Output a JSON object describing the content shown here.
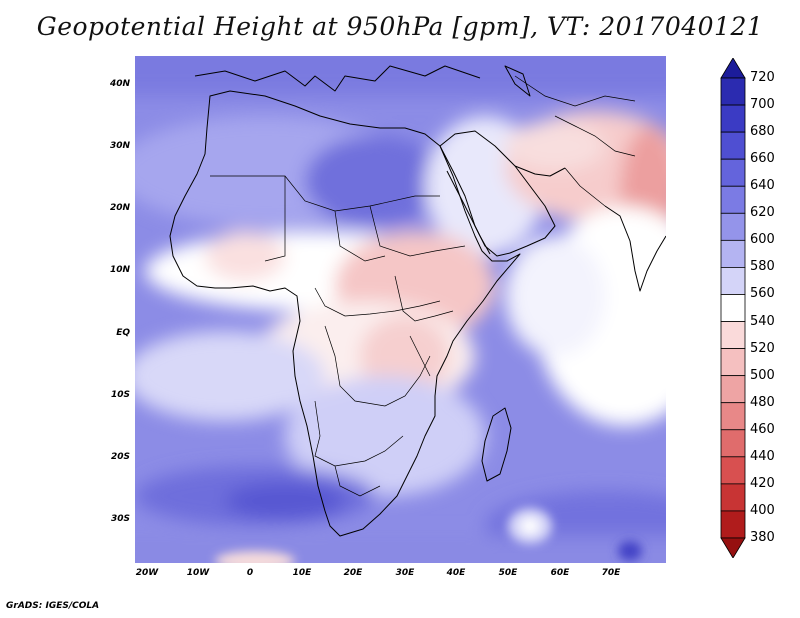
{
  "title": "Geopotential Height at 950hPa [gpm], VT: 2017040121",
  "credit": "GrADS: IGES/COLA",
  "map": {
    "variable": "Geopotential Height",
    "level": "950hPa",
    "units": "gpm",
    "valid_time": "2017040121",
    "lon_range": [
      -23,
      80
    ],
    "lat_range": [
      -37,
      45
    ],
    "lat_ticks": [
      {
        "value": 40,
        "label": "40N"
      },
      {
        "value": 30,
        "label": "30N"
      },
      {
        "value": 20,
        "label": "20N"
      },
      {
        "value": 10,
        "label": "10N"
      },
      {
        "value": 0,
        "label": "EQ"
      },
      {
        "value": -10,
        "label": "10S"
      },
      {
        "value": -20,
        "label": "20S"
      },
      {
        "value": -30,
        "label": "30S"
      }
    ],
    "lon_ticks": [
      {
        "value": -20,
        "label": "20W"
      },
      {
        "value": -10,
        "label": "10W"
      },
      {
        "value": 0,
        "label": "0"
      },
      {
        "value": 10,
        "label": "10E"
      },
      {
        "value": 20,
        "label": "20E"
      },
      {
        "value": 30,
        "label": "30E"
      },
      {
        "value": 40,
        "label": "40E"
      },
      {
        "value": 50,
        "label": "50E"
      },
      {
        "value": 60,
        "label": "60E"
      },
      {
        "value": 70,
        "label": "70E"
      }
    ]
  },
  "colorbar": {
    "levels": [
      720,
      700,
      680,
      660,
      640,
      620,
      600,
      580,
      560,
      540,
      520,
      500,
      480,
      460,
      440,
      420,
      400,
      380
    ],
    "colors": [
      "#1c1c9a",
      "#2b2bb0",
      "#3b3bc4",
      "#4f4fd2",
      "#6464dc",
      "#7b7be4",
      "#9494ea",
      "#b4b4f2",
      "#d4d4f8",
      "#ffffff",
      "#fadada",
      "#f5c0c0",
      "#eea4a4",
      "#e88888",
      "#e06c6c",
      "#d85050",
      "#c83434",
      "#b01c1c",
      "#961010"
    ]
  }
}
